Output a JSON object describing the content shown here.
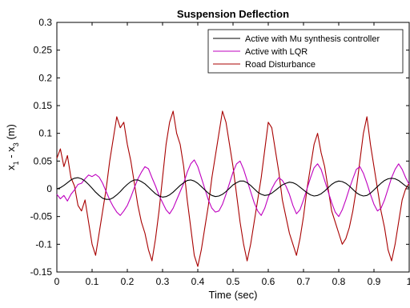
{
  "chart_data": {
    "type": "line",
    "title": "Suspension Deflection",
    "xlabel": "Time (sec)",
    "ylabel_main": "x",
    "ylabel_sub1": "1",
    "ylabel_mid": " - x",
    "ylabel_sub2": "3",
    "ylabel_unit": " (m)",
    "xlim": [
      0,
      1
    ],
    "ylim": [
      -0.15,
      0.3
    ],
    "grid": false,
    "legend_position": "top-right",
    "x_ticks": [
      0,
      0.1,
      0.2,
      0.3,
      0.4,
      0.5,
      0.6,
      0.7,
      0.8,
      0.9,
      1
    ],
    "x_tick_labels": [
      "0",
      "0.1",
      "0.2",
      "0.3",
      "0.4",
      "0.5",
      "0.6",
      "0.7",
      "0.8",
      "0.9",
      "1"
    ],
    "y_ticks": [
      -0.15,
      -0.1,
      -0.05,
      0,
      0.05,
      0.1,
      0.15,
      0.2,
      0.25,
      0.3
    ],
    "y_tick_labels": [
      "-0.15",
      "-0.1",
      "-0.05",
      "0",
      "0.05",
      "0.1",
      "0.15",
      "0.2",
      "0.25",
      "0.3"
    ],
    "series": [
      {
        "name": "Active with Mu synthesis controller",
        "color": "#000000",
        "x": [
          0,
          0.01,
          0.02,
          0.03,
          0.04,
          0.05,
          0.06,
          0.07,
          0.08,
          0.09,
          0.1,
          0.11,
          0.12,
          0.13,
          0.14,
          0.15,
          0.16,
          0.17,
          0.18,
          0.19,
          0.2,
          0.21,
          0.22,
          0.23,
          0.24,
          0.25,
          0.26,
          0.27,
          0.28,
          0.29,
          0.3,
          0.31,
          0.32,
          0.33,
          0.34,
          0.35,
          0.36,
          0.37,
          0.38,
          0.39,
          0.4,
          0.41,
          0.42,
          0.43,
          0.44,
          0.45,
          0.46,
          0.47,
          0.48,
          0.49,
          0.5,
          0.51,
          0.52,
          0.53,
          0.54,
          0.55,
          0.56,
          0.57,
          0.58,
          0.59,
          0.6,
          0.61,
          0.62,
          0.63,
          0.64,
          0.65,
          0.66,
          0.67,
          0.68,
          0.69,
          0.7,
          0.71,
          0.72,
          0.73,
          0.74,
          0.75,
          0.76,
          0.77,
          0.78,
          0.79,
          0.8,
          0.81,
          0.82,
          0.83,
          0.84,
          0.85,
          0.86,
          0.87,
          0.88,
          0.89,
          0.9,
          0.91,
          0.92,
          0.93,
          0.94,
          0.95,
          0.96,
          0.97,
          0.98,
          0.99,
          1
        ],
        "y": [
          0.0,
          0.002,
          0.006,
          0.011,
          0.016,
          0.019,
          0.02,
          0.018,
          0.014,
          0.008,
          0.001,
          -0.006,
          -0.012,
          -0.017,
          -0.019,
          -0.019,
          -0.016,
          -0.011,
          -0.005,
          0.002,
          0.008,
          0.013,
          0.016,
          0.016,
          0.013,
          0.009,
          0.003,
          -0.003,
          -0.009,
          -0.013,
          -0.015,
          -0.014,
          -0.011,
          -0.006,
          0.0,
          0.006,
          0.011,
          0.015,
          0.016,
          0.014,
          0.01,
          0.004,
          -0.002,
          -0.008,
          -0.012,
          -0.014,
          -0.013,
          -0.01,
          -0.005,
          0.001,
          0.007,
          0.011,
          0.014,
          0.014,
          0.011,
          0.006,
          0.0,
          -0.006,
          -0.01,
          -0.012,
          -0.011,
          -0.008,
          -0.003,
          0.002,
          0.007,
          0.01,
          0.012,
          0.011,
          0.008,
          0.003,
          -0.002,
          -0.007,
          -0.011,
          -0.013,
          -0.012,
          -0.009,
          -0.004,
          0.002,
          0.008,
          0.012,
          0.014,
          0.013,
          0.01,
          0.005,
          -0.001,
          -0.007,
          -0.011,
          -0.013,
          -0.012,
          -0.008,
          -0.002,
          0.004,
          0.01,
          0.015,
          0.018,
          0.019,
          0.018,
          0.015,
          0.01,
          0.005,
          0.002
        ]
      },
      {
        "name": "Active with LQR",
        "color": "#bf00bf",
        "x": [
          0,
          0.01,
          0.02,
          0.03,
          0.04,
          0.05,
          0.06,
          0.07,
          0.08,
          0.09,
          0.1,
          0.11,
          0.12,
          0.13,
          0.14,
          0.15,
          0.16,
          0.17,
          0.18,
          0.19,
          0.2,
          0.21,
          0.22,
          0.23,
          0.24,
          0.25,
          0.26,
          0.27,
          0.28,
          0.29,
          0.3,
          0.31,
          0.32,
          0.33,
          0.34,
          0.35,
          0.36,
          0.37,
          0.38,
          0.39,
          0.4,
          0.41,
          0.42,
          0.43,
          0.44,
          0.45,
          0.46,
          0.47,
          0.48,
          0.49,
          0.5,
          0.51,
          0.52,
          0.53,
          0.54,
          0.55,
          0.56,
          0.57,
          0.58,
          0.59,
          0.6,
          0.61,
          0.62,
          0.63,
          0.64,
          0.65,
          0.66,
          0.67,
          0.68,
          0.69,
          0.7,
          0.71,
          0.72,
          0.73,
          0.74,
          0.75,
          0.76,
          0.77,
          0.78,
          0.79,
          0.8,
          0.81,
          0.82,
          0.83,
          0.84,
          0.85,
          0.86,
          0.87,
          0.88,
          0.89,
          0.9,
          0.91,
          0.92,
          0.93,
          0.94,
          0.95,
          0.96,
          0.97,
          0.98,
          0.99,
          1
        ],
        "y": [
          -0.01,
          -0.018,
          -0.012,
          -0.022,
          -0.01,
          -0.002,
          0.008,
          0.01,
          0.018,
          0.025,
          0.022,
          0.026,
          0.021,
          0.01,
          -0.005,
          -0.02,
          -0.032,
          -0.042,
          -0.048,
          -0.04,
          -0.03,
          -0.015,
          0.002,
          0.018,
          0.03,
          0.04,
          0.036,
          0.02,
          0.005,
          -0.012,
          -0.025,
          -0.038,
          -0.045,
          -0.035,
          -0.02,
          -0.005,
          0.01,
          0.03,
          0.045,
          0.052,
          0.04,
          0.02,
          0.0,
          -0.02,
          -0.035,
          -0.042,
          -0.04,
          -0.028,
          -0.01,
          0.01,
          0.03,
          0.045,
          0.05,
          0.035,
          0.015,
          -0.005,
          -0.025,
          -0.04,
          -0.048,
          -0.035,
          -0.015,
          0.0,
          0.012,
          0.02,
          0.015,
          0.005,
          -0.01,
          -0.03,
          -0.045,
          -0.038,
          -0.02,
          0.0,
          0.02,
          0.038,
          0.045,
          0.035,
          0.015,
          -0.005,
          -0.025,
          -0.042,
          -0.05,
          -0.038,
          -0.02,
          0.0,
          0.018,
          0.035,
          0.04,
          0.028,
          0.01,
          -0.01,
          -0.028,
          -0.04,
          -0.035,
          -0.02,
          0.0,
          0.02,
          0.035,
          0.045,
          0.035,
          0.02,
          0.008
        ]
      },
      {
        "name": "Road Disturbance",
        "color": "#a80000",
        "x": [
          0,
          0.01,
          0.02,
          0.03,
          0.04,
          0.05,
          0.06,
          0.07,
          0.08,
          0.09,
          0.1,
          0.11,
          0.12,
          0.13,
          0.14,
          0.15,
          0.16,
          0.17,
          0.18,
          0.19,
          0.2,
          0.21,
          0.22,
          0.23,
          0.24,
          0.25,
          0.26,
          0.27,
          0.28,
          0.29,
          0.3,
          0.31,
          0.32,
          0.33,
          0.34,
          0.35,
          0.36,
          0.37,
          0.38,
          0.39,
          0.4,
          0.41,
          0.42,
          0.43,
          0.44,
          0.45,
          0.46,
          0.47,
          0.48,
          0.49,
          0.5,
          0.51,
          0.52,
          0.53,
          0.54,
          0.55,
          0.56,
          0.57,
          0.58,
          0.59,
          0.6,
          0.61,
          0.62,
          0.63,
          0.64,
          0.65,
          0.66,
          0.67,
          0.68,
          0.69,
          0.7,
          0.71,
          0.72,
          0.73,
          0.74,
          0.75,
          0.76,
          0.77,
          0.78,
          0.79,
          0.8,
          0.81,
          0.82,
          0.83,
          0.84,
          0.85,
          0.86,
          0.87,
          0.88,
          0.89,
          0.9,
          0.91,
          0.92,
          0.93,
          0.94,
          0.95,
          0.96,
          0.97,
          0.98,
          0.99,
          1
        ],
        "y": [
          0.055,
          0.072,
          0.04,
          0.06,
          0.02,
          0.005,
          -0.03,
          -0.04,
          -0.02,
          -0.06,
          -0.1,
          -0.12,
          -0.08,
          -0.04,
          0.0,
          0.05,
          0.09,
          0.13,
          0.11,
          0.12,
          0.08,
          0.05,
          0.01,
          -0.03,
          -0.06,
          -0.08,
          -0.11,
          -0.13,
          -0.09,
          -0.04,
          0.02,
          0.08,
          0.12,
          0.14,
          0.1,
          0.08,
          0.04,
          -0.02,
          -0.07,
          -0.12,
          -0.14,
          -0.11,
          -0.07,
          -0.03,
          0.02,
          0.06,
          0.1,
          0.14,
          0.12,
          0.08,
          0.04,
          -0.01,
          -0.06,
          -0.1,
          -0.13,
          -0.1,
          -0.06,
          -0.02,
          0.02,
          0.07,
          0.12,
          0.11,
          0.07,
          0.03,
          -0.02,
          -0.05,
          -0.08,
          -0.1,
          -0.12,
          -0.09,
          -0.05,
          0.0,
          0.04,
          0.08,
          0.1,
          0.065,
          0.04,
          0.0,
          -0.04,
          -0.06,
          -0.08,
          -0.1,
          -0.09,
          -0.07,
          -0.04,
          0.0,
          0.05,
          0.1,
          0.13,
          0.08,
          0.04,
          0.0,
          -0.04,
          -0.07,
          -0.11,
          -0.13,
          -0.1,
          -0.06,
          -0.02,
          0.0,
          0.01
        ]
      }
    ]
  }
}
